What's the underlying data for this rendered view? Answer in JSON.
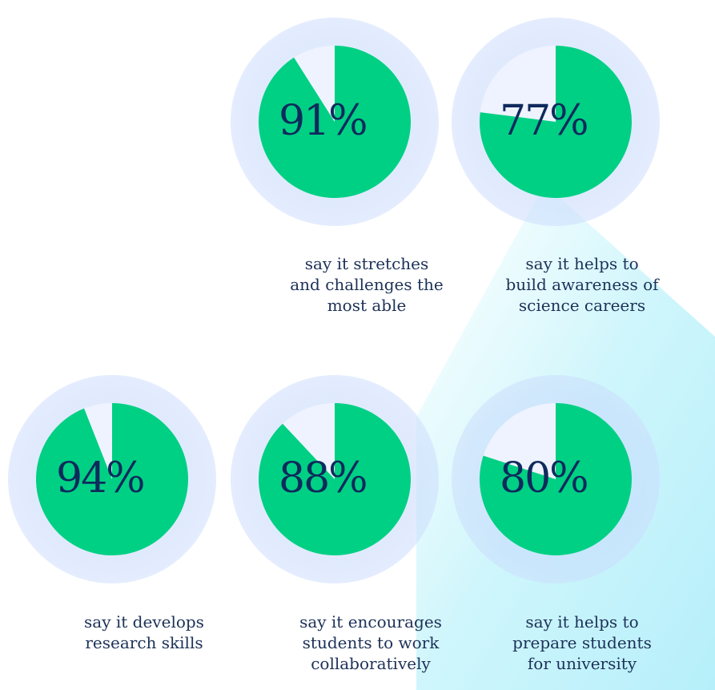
{
  "colors": {
    "pie_fill": "#00d084",
    "pie_rest": "#eef3ff",
    "halo": "#c8d9fb",
    "text": "#0f2a5c",
    "beam": "#c8f5fc"
  },
  "chart_data": [
    {
      "type": "pie",
      "value": 91,
      "label": "91%",
      "caption": [
        "say it stretches",
        "and challenges the",
        "most able"
      ]
    },
    {
      "type": "pie",
      "value": 77,
      "label": "77%",
      "caption": [
        "say it helps to",
        "build awareness of",
        "science careers"
      ]
    },
    {
      "type": "pie",
      "value": 94,
      "label": "94%",
      "caption": [
        "say it develops",
        "research skills"
      ]
    },
    {
      "type": "pie",
      "value": 88,
      "label": "88%",
      "caption": [
        "say it encourages",
        "students to work",
        "collaboratively"
      ]
    },
    {
      "type": "pie",
      "value": 80,
      "label": "80%",
      "caption": [
        "say it helps to",
        "prepare students",
        "for university"
      ]
    }
  ]
}
